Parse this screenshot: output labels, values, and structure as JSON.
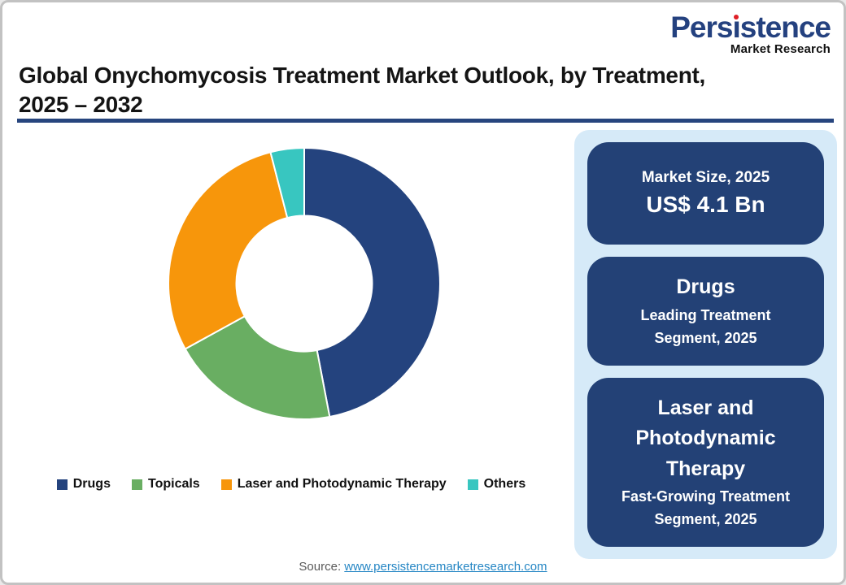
{
  "logo": {
    "name": "Persistence",
    "name_pre": "Pers",
    "name_i": "ı",
    "name_post": "stence",
    "tagline": "Market Research",
    "name_color": "#24417f",
    "dot_color": "#df1f26"
  },
  "header": {
    "title_line1": "Global Onychomycosis Treatment Market Outlook, by Treatment,",
    "title_line2": "2025 – 2032",
    "underline_color": "#27457e"
  },
  "chart_data": {
    "type": "pie",
    "subtype": "donut",
    "title": "Global Onychomycosis Treatment Market Outlook, by Treatment, 2025 – 2032",
    "inner_radius_ratio": 0.5,
    "start_angle_deg": 0,
    "direction": "clockwise",
    "legend_position": "bottom",
    "segments": [
      {
        "label": "Drugs",
        "value": 47,
        "color": "#24437e"
      },
      {
        "label": "Topicals",
        "value": 20,
        "color": "#69ae62"
      },
      {
        "label": "Laser and Photodynamic Therapy",
        "value": 29,
        "color": "#f7960b"
      },
      {
        "label": "Others",
        "value": 4,
        "color": "#38c6c0"
      }
    ]
  },
  "panel": {
    "background_color": "#d6eaf8",
    "card_color": "#234176",
    "cards": [
      {
        "title": "Market Size, 2025",
        "value": "US$ 4.1 Bn"
      },
      {
        "title": "Drugs",
        "subtitle": "Leading Treatment Segment, 2025"
      },
      {
        "title": "Laser and Photodynamic Therapy",
        "subtitle": "Fast-Growing Treatment Segment, 2025"
      }
    ]
  },
  "footer": {
    "source_label": "Source:",
    "source_url": "www.persistencemarketresearch.com",
    "link_color": "#2586c4"
  }
}
